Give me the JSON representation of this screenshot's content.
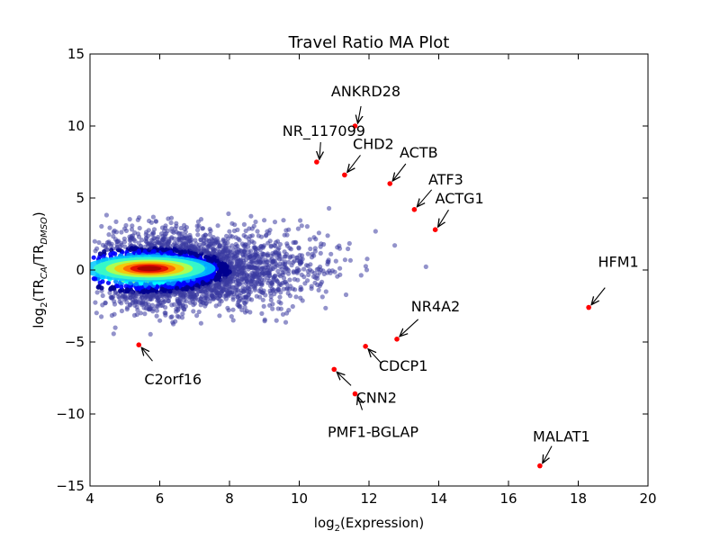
{
  "chart_data": {
    "type": "scatter",
    "title": "Travel Ratio MA Plot",
    "xlabel": {
      "prefix": "log",
      "base": "2",
      "body": "(Expression)"
    },
    "ylabel": {
      "prefix": "log",
      "base": "2",
      "open": "(TR",
      "sub1": "CA",
      "mid": "/TR",
      "sub2": "DMSO",
      "close": ")"
    },
    "xlim": [
      4,
      20
    ],
    "ylim": [
      -15,
      15
    ],
    "xticks": [
      4,
      6,
      8,
      10,
      12,
      14,
      16,
      18,
      20
    ],
    "yticks": [
      -15,
      -10,
      -5,
      0,
      5,
      10,
      15
    ],
    "ytick_labels": [
      "−15",
      "−10",
      "−5",
      "0",
      "5",
      "10",
      "15"
    ],
    "grid": false,
    "density_colormap": [
      "#00008f",
      "#0000ff",
      "#0080ff",
      "#00ffff",
      "#80ff80",
      "#ffff00",
      "#ff8000",
      "#ff0000",
      "#800000"
    ],
    "highlight_color": "#ff0000",
    "background_points_color": "#3a3aa0",
    "highlighted_genes": [
      {
        "label": "ANKRD28",
        "x": 11.6,
        "y": 10.0
      },
      {
        "label": "NR_117099",
        "x": 10.5,
        "y": 7.5
      },
      {
        "label": "CHD2",
        "x": 11.3,
        "y": 6.6
      },
      {
        "label": "ACTB",
        "x": 12.6,
        "y": 6.0
      },
      {
        "label": "ATF3",
        "x": 13.3,
        "y": 4.2
      },
      {
        "label": "ACTG1",
        "x": 13.9,
        "y": 2.8
      },
      {
        "label": "HFM1",
        "x": 18.3,
        "y": -2.6
      },
      {
        "label": "NR4A2",
        "x": 12.8,
        "y": -4.8
      },
      {
        "label": "CDCP1",
        "x": 11.9,
        "y": -5.3
      },
      {
        "label": "C2orf16",
        "x": 5.4,
        "y": -5.2
      },
      {
        "label": "CNN2",
        "x": 11.0,
        "y": -6.9
      },
      {
        "label": "PMF1-BGLAP",
        "x": 11.6,
        "y": -8.6
      },
      {
        "label": "MALAT1",
        "x": 16.9,
        "y": -13.6
      }
    ]
  }
}
